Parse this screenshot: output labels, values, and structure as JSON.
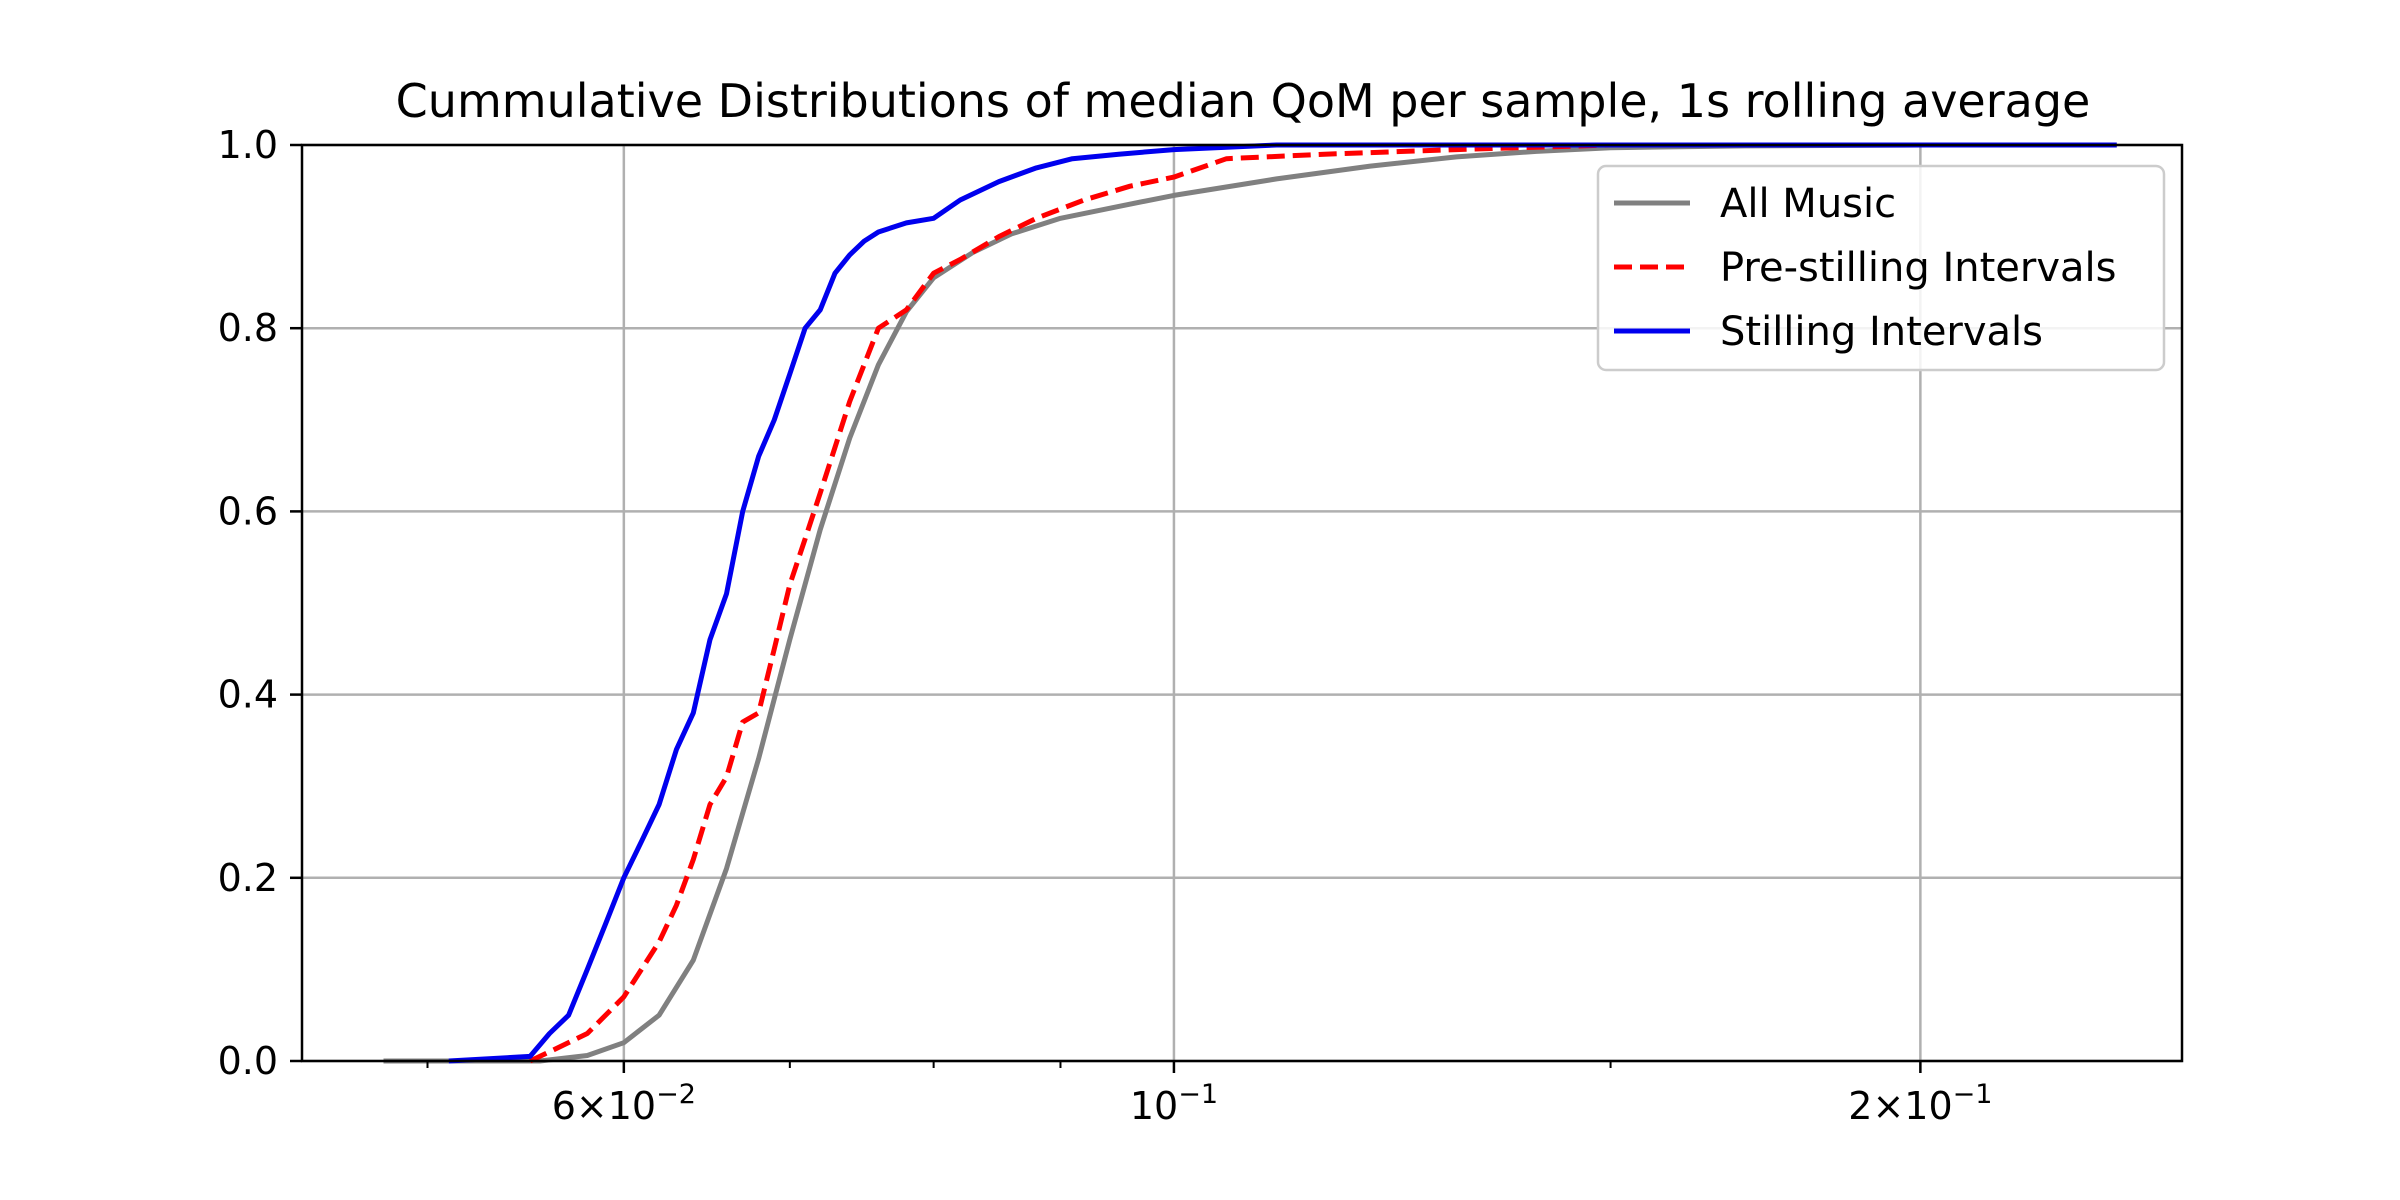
{
  "chart_data": {
    "type": "line",
    "title": "Cummulative Distributions of median QoM per sample, 1s rolling average",
    "xlabel": "",
    "ylabel": "",
    "x_scale": "log",
    "xlim": [
      0.0445,
      0.255
    ],
    "ylim": [
      0.0,
      1.0
    ],
    "grid": true,
    "legend_position": "top-right",
    "x_ticks": [
      {
        "value": 0.06,
        "mantissa": "6",
        "exponent": "−2"
      },
      {
        "value": 0.1,
        "mantissa": "",
        "exponent": "−1"
      },
      {
        "value": 0.2,
        "mantissa": "2",
        "exponent": "−1"
      }
    ],
    "x_minor_ticks": [
      0.05,
      0.07,
      0.08,
      0.09,
      0.15
    ],
    "y_ticks": [
      "0.0",
      "0.2",
      "0.4",
      "0.6",
      "0.8",
      "1.0"
    ],
    "series": [
      {
        "name": "All Music",
        "color": "#808080",
        "style": "solid",
        "x": [
          0.048,
          0.0555,
          0.058,
          0.06,
          0.062,
          0.064,
          0.066,
          0.068,
          0.07,
          0.072,
          0.074,
          0.076,
          0.078,
          0.08,
          0.083,
          0.086,
          0.09,
          0.095,
          0.1,
          0.11,
          0.12,
          0.13,
          0.14,
          0.15,
          0.17,
          0.2,
          0.24
        ],
        "y": [
          0.0,
          0.0,
          0.006,
          0.02,
          0.05,
          0.11,
          0.21,
          0.33,
          0.46,
          0.58,
          0.68,
          0.76,
          0.818,
          0.855,
          0.883,
          0.903,
          0.92,
          0.933,
          0.945,
          0.963,
          0.977,
          0.987,
          0.993,
          0.997,
          0.999,
          1.0,
          1.0
        ]
      },
      {
        "name": "Pre-stilling Intervals",
        "color": "#ff0000",
        "style": "dashed",
        "x": [
          0.055,
          0.056,
          0.058,
          0.06,
          0.062,
          0.063,
          0.064,
          0.065,
          0.066,
          0.067,
          0.068,
          0.069,
          0.07,
          0.071,
          0.072,
          0.073,
          0.074,
          0.076,
          0.078,
          0.08,
          0.082,
          0.085,
          0.088,
          0.092,
          0.096,
          0.1,
          0.105,
          0.115,
          0.13,
          0.15,
          0.18,
          0.24
        ],
        "y": [
          0.0,
          0.01,
          0.03,
          0.07,
          0.13,
          0.17,
          0.22,
          0.28,
          0.31,
          0.37,
          0.38,
          0.45,
          0.52,
          0.57,
          0.62,
          0.67,
          0.72,
          0.8,
          0.82,
          0.86,
          0.875,
          0.9,
          0.92,
          0.94,
          0.955,
          0.965,
          0.985,
          0.99,
          0.995,
          1.0,
          1.0,
          1.0
        ]
      },
      {
        "name": "Stilling Intervals",
        "color": "#0000ee",
        "style": "solid",
        "x": [
          0.051,
          0.055,
          0.056,
          0.057,
          0.058,
          0.059,
          0.06,
          0.061,
          0.062,
          0.063,
          0.064,
          0.065,
          0.066,
          0.067,
          0.068,
          0.069,
          0.07,
          0.071,
          0.072,
          0.073,
          0.074,
          0.075,
          0.076,
          0.078,
          0.08,
          0.082,
          0.085,
          0.088,
          0.091,
          0.095,
          0.1,
          0.11,
          0.13,
          0.16,
          0.24
        ],
        "y": [
          0.0,
          0.005,
          0.03,
          0.05,
          0.1,
          0.15,
          0.2,
          0.24,
          0.28,
          0.34,
          0.38,
          0.46,
          0.51,
          0.6,
          0.66,
          0.7,
          0.75,
          0.8,
          0.82,
          0.86,
          0.88,
          0.895,
          0.905,
          0.915,
          0.92,
          0.94,
          0.96,
          0.975,
          0.985,
          0.99,
          0.995,
          1.0,
          1.0,
          1.0,
          1.0
        ]
      }
    ]
  }
}
